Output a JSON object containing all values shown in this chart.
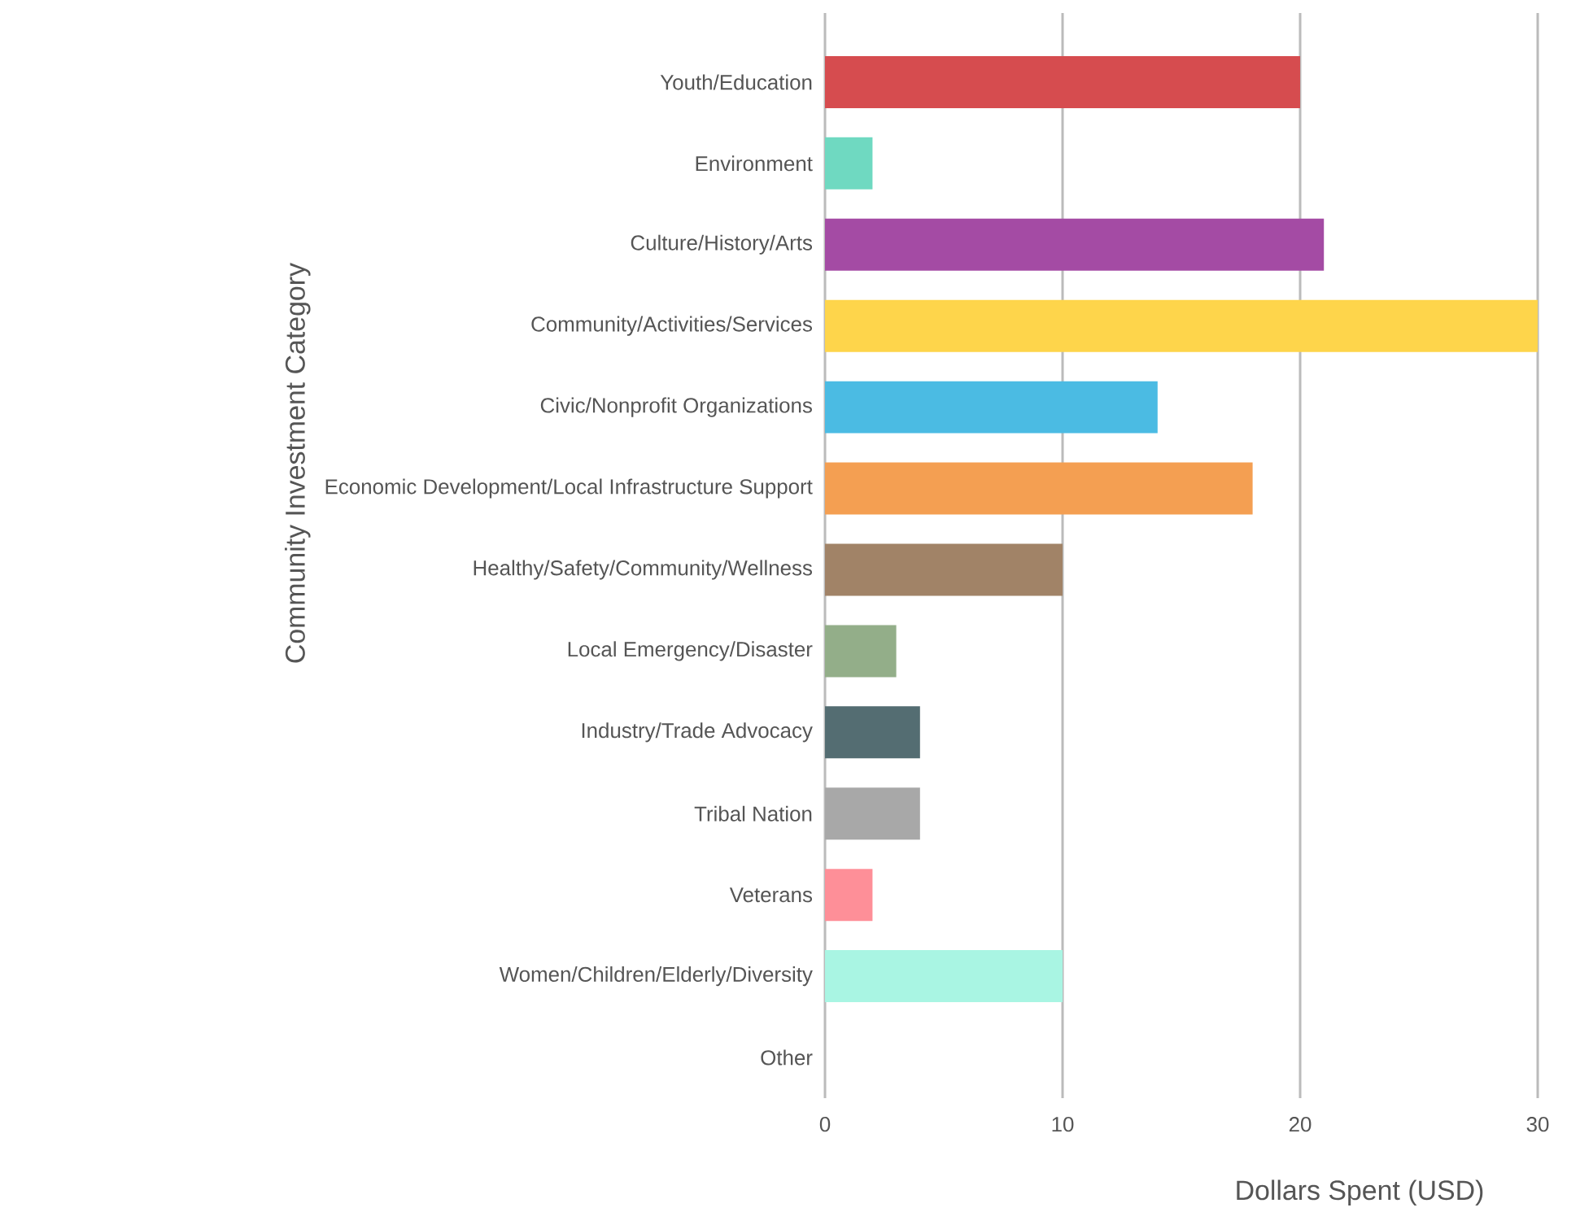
{
  "chart_data": {
    "type": "bar",
    "orientation": "horizontal",
    "categories": [
      "Youth/Education",
      "Environment",
      "Culture/History/Arts",
      "Community/Activities/Services",
      "Civic/Nonprofit Organizations",
      "Economic Development/Local Infrastructure Support",
      "Healthy/Safety/Community/Wellness",
      "Local Emergency/Disaster",
      "Industry/Trade Advocacy",
      "Tribal Nation",
      "Veterans",
      "Women/Children/Elderly/Diversity",
      "Other"
    ],
    "values": [
      20,
      2,
      21,
      30,
      14,
      18,
      10,
      3,
      4,
      4,
      2,
      10,
      0
    ],
    "colors": [
      "#d64c4f",
      "#6fd9c1",
      "#a44ba4",
      "#fed54b",
      "#4bbbe3",
      "#f49f52",
      "#a18367",
      "#93ae89",
      "#546d72",
      "#a8a8a8",
      "#fe8f98",
      "#a9f5e3",
      "#cccccc"
    ],
    "xlim": [
      0,
      30
    ],
    "xticks": [
      0,
      10,
      20,
      30
    ],
    "xlabel": "Dollars Spent (USD)",
    "ylabel": "Community Investment Category",
    "grid": "x"
  }
}
